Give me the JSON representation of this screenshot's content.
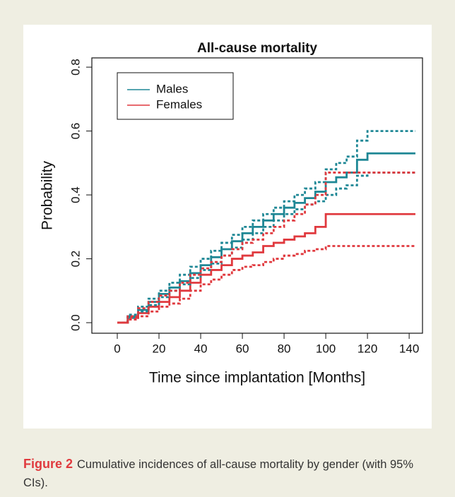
{
  "chart_data": {
    "type": "line",
    "step": "post",
    "title": "All-cause mortality",
    "x_label": "Time since implantation [Months]",
    "y_label": "Probability",
    "x": [
      0,
      5,
      10,
      15,
      20,
      25,
      30,
      35,
      40,
      45,
      50,
      55,
      60,
      65,
      70,
      75,
      80,
      85,
      90,
      95,
      100,
      105,
      110,
      115,
      120,
      125,
      130,
      135,
      140,
      143
    ],
    "series": [
      {
        "name": "Males",
        "color": "#1e8795",
        "linestyle": "solid",
        "values": [
          0,
          0.02,
          0.04,
          0.065,
          0.09,
          0.11,
          0.13,
          0.155,
          0.18,
          0.205,
          0.23,
          0.255,
          0.28,
          0.3,
          0.32,
          0.34,
          0.36,
          0.375,
          0.39,
          0.41,
          0.44,
          0.455,
          0.47,
          0.51,
          0.53,
          0.53,
          0.53,
          0.53,
          0.53,
          0.53
        ]
      },
      {
        "name": "Females",
        "color": "#e0393e",
        "linestyle": "solid",
        "values": [
          0,
          0.015,
          0.03,
          0.05,
          0.065,
          0.08,
          0.1,
          0.125,
          0.15,
          0.165,
          0.18,
          0.2,
          0.21,
          0.22,
          0.24,
          0.25,
          0.26,
          0.27,
          0.28,
          0.3,
          0.34,
          0.34,
          0.34,
          0.34,
          0.34,
          0.34,
          0.34,
          0.34,
          0.34,
          0.34
        ]
      },
      {
        "color": "#1e8795",
        "linestyle": "dashed",
        "values": [
          0,
          0.025,
          0.05,
          0.075,
          0.1,
          0.125,
          0.15,
          0.175,
          0.2,
          0.225,
          0.25,
          0.275,
          0.3,
          0.32,
          0.34,
          0.36,
          0.38,
          0.4,
          0.42,
          0.44,
          0.48,
          0.5,
          0.52,
          0.57,
          0.6,
          0.6,
          0.6,
          0.6,
          0.6,
          0.6
        ]
      },
      {
        "color": "#1e8795",
        "linestyle": "dashed",
        "values": [
          0,
          0.015,
          0.035,
          0.055,
          0.08,
          0.1,
          0.12,
          0.14,
          0.165,
          0.185,
          0.21,
          0.235,
          0.26,
          0.28,
          0.3,
          0.32,
          0.34,
          0.355,
          0.37,
          0.38,
          0.4,
          0.42,
          0.43,
          0.46,
          0.47,
          0.47,
          0.47,
          0.47,
          0.47,
          0.47
        ]
      },
      {
        "color": "#e0393e",
        "linestyle": "dashed",
        "values": [
          0,
          0.02,
          0.045,
          0.065,
          0.085,
          0.1,
          0.125,
          0.15,
          0.17,
          0.19,
          0.21,
          0.23,
          0.25,
          0.26,
          0.28,
          0.3,
          0.32,
          0.34,
          0.37,
          0.4,
          0.47,
          0.47,
          0.47,
          0.47,
          0.47,
          0.47,
          0.47,
          0.47,
          0.47,
          0.47
        ]
      },
      {
        "color": "#e0393e",
        "linestyle": "dashed",
        "values": [
          0,
          0.01,
          0.02,
          0.035,
          0.05,
          0.06,
          0.075,
          0.1,
          0.12,
          0.135,
          0.15,
          0.165,
          0.175,
          0.18,
          0.19,
          0.2,
          0.21,
          0.215,
          0.225,
          0.23,
          0.24,
          0.24,
          0.24,
          0.24,
          0.24,
          0.24,
          0.24,
          0.24,
          0.24,
          0.24
        ]
      }
    ],
    "xlim": [
      -12.2,
      146.4
    ],
    "ylim": [
      -0.033,
      0.829
    ],
    "xticks": [
      0,
      20,
      40,
      60,
      80,
      100,
      120,
      140
    ],
    "yticks": [
      {
        "value": 0,
        "label": "0.0"
      },
      0.2,
      0.4,
      0.6,
      0.8
    ],
    "legend": "top-left",
    "grid": false
  },
  "caption": {
    "label": "Figure 2",
    "text": "Cumulative incidences of all-cause mortality by gender (with 95% CIs)."
  }
}
